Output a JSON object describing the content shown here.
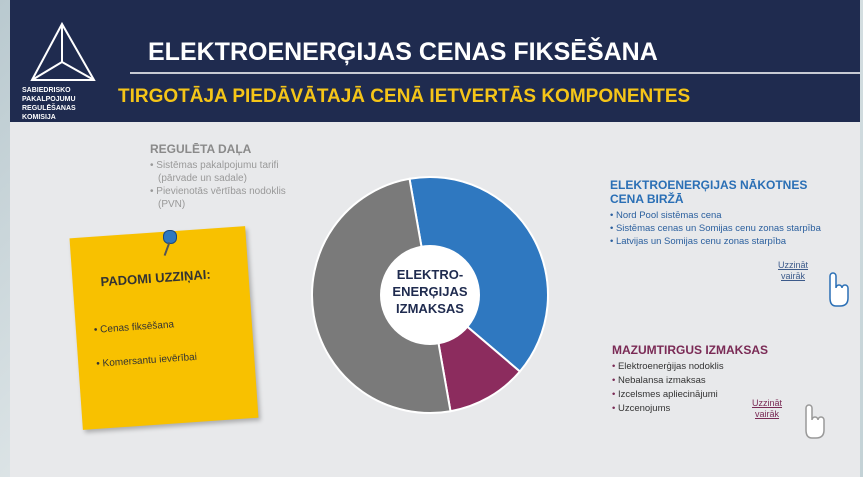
{
  "logo": {
    "lines": [
      "SABIEDRISKO",
      "PAKALPOJUMU",
      "REGULĒŠANAS",
      "KOMISIJA"
    ]
  },
  "header": {
    "title": "ELEKTROENERĢIJAS CENAS FIKSĒŠANA",
    "subtitle": "TIRGOTĀJA PIEDĀVĀTAJĀ CENĀ IETVERTĀS KOMPONENTES"
  },
  "regulated": {
    "title": "REGULĒTA DAĻA",
    "items": [
      [
        "Sistēmas pakalpojumu tarifi",
        "(pārvade un sadale)"
      ],
      [
        "Pievienotās vērtības nodoklis",
        "(PVN)"
      ]
    ]
  },
  "tips": {
    "title": "PADOMI UZZIŅAI:",
    "items": [
      "Cenas fiksēšana",
      "Komersantu ievērībai"
    ]
  },
  "chart_data": {
    "type": "pie",
    "center_label": [
      "ELEKTRO-",
      "ENERĢIJAS",
      "IZMAKSAS"
    ],
    "values": [
      39,
      11,
      50
    ],
    "colors": [
      "#2f78c0",
      "#8c2c5e",
      "#7a7a7a"
    ]
  },
  "exchange": {
    "title": [
      "ELEKTROENERĢIJAS NĀKOTNES",
      "CENA BIRŽĀ"
    ],
    "items": [
      "Nord Pool sistēmas cena",
      "Sistēmas cenas un Somijas cenu zonas starpība",
      "Latvijas un Somijas cenu zonas starpība"
    ],
    "link": [
      "Uzzināt",
      "vairāk"
    ]
  },
  "retail": {
    "title": "MAZUMTIRGUS IZMAKSAS",
    "items": [
      "Elektroenerģijas nodoklis",
      "Nebalansa izmaksas",
      "Izcelsmes apliecinājumi",
      "Uzcenojums"
    ],
    "link": [
      "Uzzināt",
      "vairāk"
    ]
  }
}
